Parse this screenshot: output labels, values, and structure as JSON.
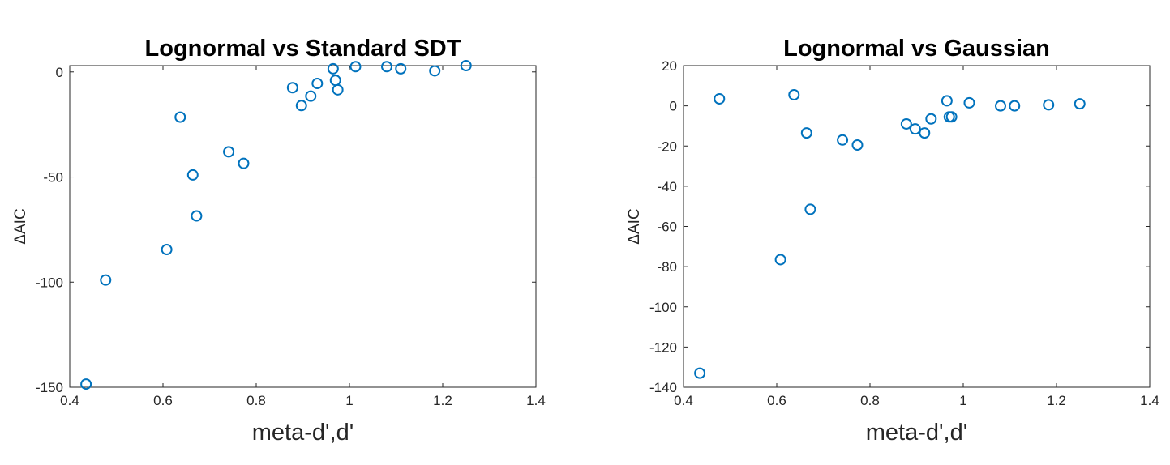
{
  "chart_data": [
    {
      "type": "scatter",
      "title": "Lognormal vs Standard SDT",
      "xlabel": "meta-d',d'",
      "ylabel": "ΔAIC",
      "xlim": [
        0.4,
        1.4
      ],
      "ylim": [
        -150,
        3
      ],
      "xticks": [
        0.4,
        0.6,
        0.8,
        1.0,
        1.2,
        1.4
      ],
      "xtick_labels": [
        "0.4",
        "0.6",
        "0.8",
        "1",
        "1.2",
        "1.4"
      ],
      "yticks": [
        0,
        -50,
        -100,
        -150
      ],
      "ytick_labels": [
        "0",
        "-50",
        "-100",
        "-150"
      ],
      "grid": false,
      "marker_color": "#0072BD",
      "points": [
        {
          "x": 0.435,
          "y": -148.5
        },
        {
          "x": 0.477,
          "y": -99
        },
        {
          "x": 0.608,
          "y": -84.5
        },
        {
          "x": 0.637,
          "y": -21.5
        },
        {
          "x": 0.664,
          "y": -49
        },
        {
          "x": 0.672,
          "y": -68.5
        },
        {
          "x": 0.741,
          "y": -38
        },
        {
          "x": 0.773,
          "y": -43.5
        },
        {
          "x": 0.878,
          "y": -7.5
        },
        {
          "x": 0.897,
          "y": -16
        },
        {
          "x": 0.917,
          "y": -11.5
        },
        {
          "x": 0.931,
          "y": -5.5
        },
        {
          "x": 0.965,
          "y": 1.5
        },
        {
          "x": 0.97,
          "y": -4
        },
        {
          "x": 0.975,
          "y": -8.5
        },
        {
          "x": 1.013,
          "y": 2.5
        },
        {
          "x": 1.08,
          "y": 2.5
        },
        {
          "x": 1.11,
          "y": 1.5
        },
        {
          "x": 1.183,
          "y": 0.5
        },
        {
          "x": 1.25,
          "y": 3
        }
      ]
    },
    {
      "type": "scatter",
      "title": "Lognormal vs Gaussian",
      "xlabel": "meta-d',d'",
      "ylabel": "ΔAIC",
      "xlim": [
        0.4,
        1.4
      ],
      "ylim": [
        -140,
        20
      ],
      "xticks": [
        0.4,
        0.6,
        0.8,
        1.0,
        1.2,
        1.4
      ],
      "xtick_labels": [
        "0.4",
        "0.6",
        "0.8",
        "1",
        "1.2",
        "1.4"
      ],
      "yticks": [
        20,
        0,
        -20,
        -40,
        -60,
        -80,
        -100,
        -120,
        -140
      ],
      "ytick_labels": [
        "20",
        "0",
        "-20",
        "-40",
        "-60",
        "-80",
        "-100",
        "-120",
        "-140"
      ],
      "grid": false,
      "marker_color": "#0072BD",
      "points": [
        {
          "x": 0.435,
          "y": -133
        },
        {
          "x": 0.477,
          "y": 3.5
        },
        {
          "x": 0.608,
          "y": -76.5
        },
        {
          "x": 0.637,
          "y": 5.5
        },
        {
          "x": 0.664,
          "y": -13.5
        },
        {
          "x": 0.672,
          "y": -51.5
        },
        {
          "x": 0.741,
          "y": -17
        },
        {
          "x": 0.773,
          "y": -19.5
        },
        {
          "x": 0.878,
          "y": -9
        },
        {
          "x": 0.897,
          "y": -11.5
        },
        {
          "x": 0.917,
          "y": -13.5
        },
        {
          "x": 0.931,
          "y": -6.5
        },
        {
          "x": 0.965,
          "y": 2.5
        },
        {
          "x": 0.97,
          "y": -5.5
        },
        {
          "x": 0.975,
          "y": -5.5
        },
        {
          "x": 1.013,
          "y": 1.5
        },
        {
          "x": 1.08,
          "y": 0
        },
        {
          "x": 1.11,
          "y": 0
        },
        {
          "x": 1.183,
          "y": 0.5
        },
        {
          "x": 1.25,
          "y": 1
        }
      ]
    }
  ]
}
